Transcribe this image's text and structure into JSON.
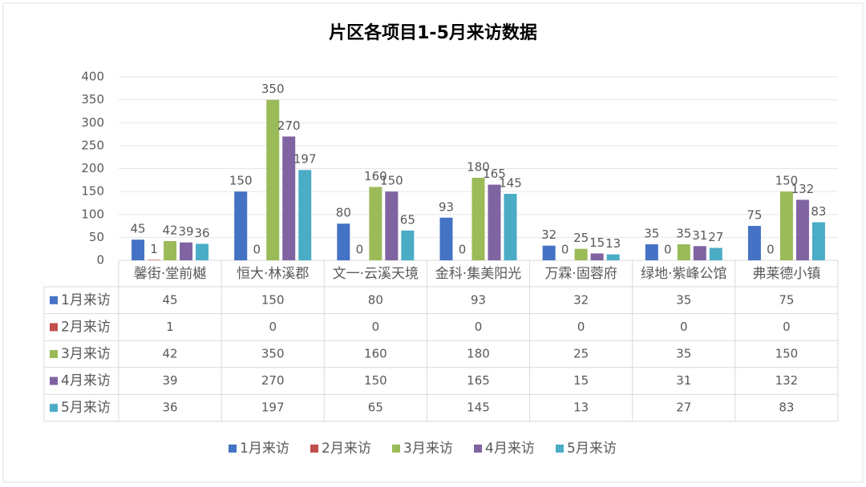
{
  "chart_data": {
    "type": "bar",
    "title": "片区各项目1-5月来访数据",
    "categories": [
      "馨街·堂前樾",
      "恒大·林溪郡",
      "文一·云溪天境",
      "金科·集美阳光",
      "万霖·固蓉府",
      "绿地·紫峰公馆",
      "弗莱德小镇"
    ],
    "series": [
      {
        "name": "1月来访",
        "color": "#4472c4",
        "values": [
          45,
          150,
          80,
          93,
          32,
          35,
          75
        ]
      },
      {
        "name": "2月来访",
        "color": "#c0504d",
        "values": [
          1,
          0,
          0,
          0,
          0,
          0,
          0
        ]
      },
      {
        "name": "3月来访",
        "color": "#9bbb59",
        "values": [
          42,
          350,
          160,
          180,
          25,
          35,
          150
        ]
      },
      {
        "name": "4月来访",
        "color": "#8064a2",
        "values": [
          39,
          270,
          150,
          165,
          15,
          31,
          132
        ]
      },
      {
        "name": "5月来访",
        "color": "#4bacc6",
        "values": [
          36,
          197,
          65,
          145,
          13,
          27,
          83
        ]
      }
    ],
    "ylim": [
      0,
      400
    ],
    "yticks": [
      0,
      50,
      100,
      150,
      200,
      250,
      300,
      350,
      400
    ],
    "grid": true,
    "legend": "bottom"
  }
}
